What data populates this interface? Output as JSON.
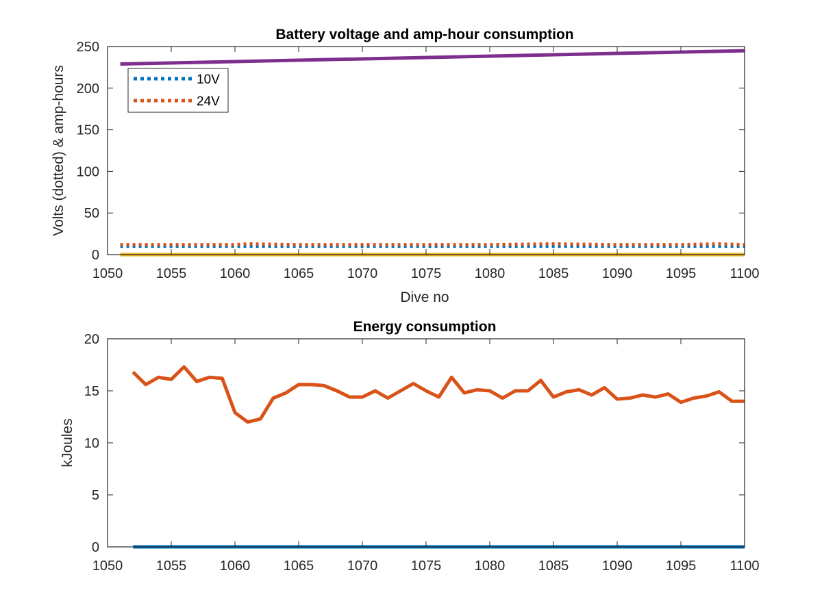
{
  "chart_data": [
    {
      "type": "line",
      "title": "Battery voltage and amp-hour consumption",
      "xlabel": "Dive no",
      "ylabel": "Volts (dotted) & amp-hours",
      "xlim": [
        1050,
        1100
      ],
      "ylim": [
        0,
        250
      ],
      "xticks": [
        1050,
        1055,
        1060,
        1065,
        1070,
        1075,
        1080,
        1085,
        1090,
        1095,
        1100
      ],
      "yticks": [
        0,
        50,
        100,
        150,
        200,
        250
      ],
      "grid": false,
      "legend_position": "top-left",
      "series": [
        {
          "name": "10V",
          "style": "dotted",
          "color": "#0072BD",
          "x": [
            1051,
            1100
          ],
          "values": [
            10,
            10
          ]
        },
        {
          "name": "24V",
          "style": "dotted",
          "color": "#D95319",
          "x": [
            1051,
            1055,
            1060,
            1061,
            1065,
            1070,
            1075,
            1080,
            1085,
            1090,
            1095,
            1098,
            1100
          ],
          "values": [
            12,
            12,
            12,
            13,
            12,
            12,
            12,
            12,
            13,
            12,
            12,
            13,
            12
          ]
        },
        {
          "style": "solid",
          "color": "#EDB120",
          "x": [
            1051,
            1100
          ],
          "values": [
            0,
            0
          ]
        },
        {
          "style": "solid",
          "color": "#7E2F8E",
          "x": [
            1051,
            1100
          ],
          "values": [
            229,
            245
          ]
        }
      ]
    },
    {
      "type": "line",
      "title": "Energy consumption",
      "xlabel": "",
      "ylabel": "kJoules",
      "xlim": [
        1050,
        1100
      ],
      "ylim": [
        0,
        20
      ],
      "xticks": [
        1050,
        1055,
        1060,
        1065,
        1070,
        1075,
        1080,
        1085,
        1090,
        1095,
        1100
      ],
      "yticks": [
        0,
        5,
        10,
        15,
        20
      ],
      "grid": false,
      "series": [
        {
          "style": "solid",
          "color": "#0072BD",
          "x": [
            1052,
            1100
          ],
          "values": [
            0,
            0
          ]
        },
        {
          "style": "solid",
          "color": "#D95319",
          "x": [
            1052,
            1053,
            1054,
            1055,
            1056,
            1057,
            1058,
            1059,
            1060,
            1061,
            1062,
            1063,
            1064,
            1065,
            1066,
            1067,
            1068,
            1069,
            1070,
            1071,
            1072,
            1073,
            1074,
            1075,
            1076,
            1077,
            1078,
            1079,
            1080,
            1081,
            1082,
            1083,
            1084,
            1085,
            1086,
            1087,
            1088,
            1089,
            1090,
            1091,
            1092,
            1093,
            1094,
            1095,
            1096,
            1097,
            1098,
            1099,
            1100
          ],
          "values": [
            16.8,
            15.6,
            16.3,
            16.1,
            17.3,
            15.9,
            16.3,
            16.2,
            12.9,
            12.0,
            12.3,
            14.3,
            14.8,
            15.6,
            15.6,
            15.5,
            15.0,
            14.4,
            14.4,
            15.0,
            14.3,
            15.0,
            15.7,
            15.0,
            14.4,
            16.3,
            14.8,
            15.1,
            15.0,
            14.3,
            15.0,
            15.0,
            16.0,
            14.4,
            14.9,
            15.1,
            14.6,
            15.3,
            14.2,
            14.3,
            14.6,
            14.4,
            14.7,
            13.9,
            14.3,
            14.5,
            14.9,
            14.0,
            14.0
          ]
        }
      ]
    }
  ]
}
